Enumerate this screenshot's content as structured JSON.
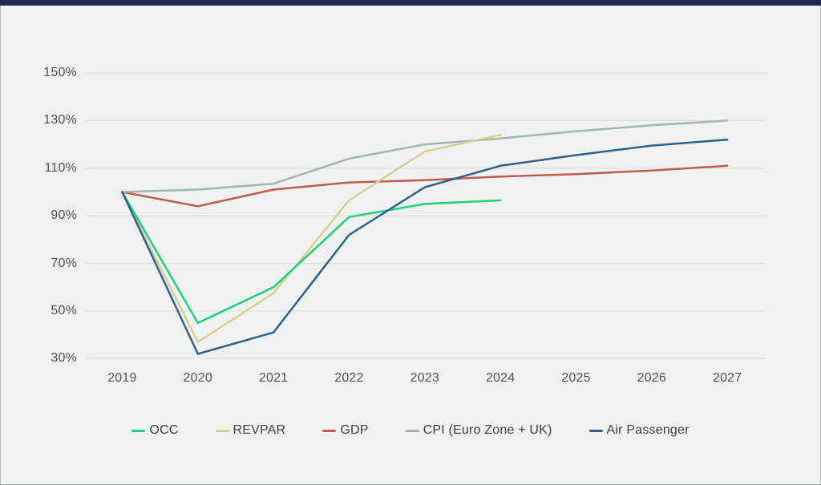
{
  "chart_data": {
    "type": "line",
    "categories": [
      "2019",
      "2020",
      "2021",
      "2022",
      "2023",
      "2024",
      "2025",
      "2026",
      "2027"
    ],
    "y_ticks": [
      {
        "label": "150%",
        "value": 150
      },
      {
        "label": "130%",
        "value": 130
      },
      {
        "label": "110%",
        "value": 110
      },
      {
        "label": "90%",
        "value": 90
      },
      {
        "label": "70%",
        "value": 70
      },
      {
        "label": "50%",
        "value": 50
      },
      {
        "label": "30%",
        "value": 30
      }
    ],
    "ylim": [
      30,
      150
    ],
    "grid": true,
    "legend_position": "bottom",
    "title": "",
    "xlabel": "",
    "ylabel": "",
    "series": [
      {
        "name": "GDP",
        "color": "#c15b4c",
        "values": [
          100,
          94,
          101,
          104,
          105,
          106.5,
          107.5,
          109,
          111
        ]
      },
      {
        "name": "CPI (Euro Zone + UK)",
        "color": "#a4b6b2",
        "values": [
          100,
          101,
          103.5,
          114,
          120,
          122.5,
          125.5,
          128,
          130
        ]
      },
      {
        "name": "REVPAR",
        "color": "#d9cf93",
        "values": [
          100,
          37,
          57.5,
          96.5,
          117,
          124
        ]
      },
      {
        "name": "OCC",
        "color": "#1fd07d",
        "values": [
          100,
          45,
          60,
          89.5,
          95,
          96.5
        ]
      },
      {
        "name": "Air Passenger",
        "color": "#2f618d",
        "values": [
          100,
          32,
          41,
          82,
          102,
          111,
          115.5,
          119.5,
          122
        ]
      }
    ],
    "legend_order": [
      "OCC",
      "REVPAR",
      "GDP",
      "CPI (Euro Zone + UK)",
      "Air Passenger"
    ]
  },
  "colors": {
    "background": "#eff2f1",
    "top_bar": "#1e2b4d",
    "grid_line": "#dde1e0",
    "tick_text": "#4f545a",
    "legend_text": "#3d4247"
  }
}
